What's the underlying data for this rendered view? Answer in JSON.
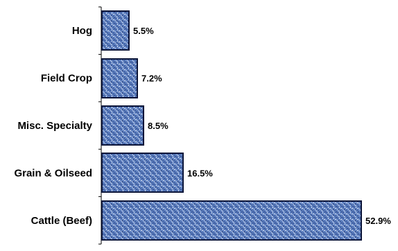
{
  "chart_data": {
    "type": "bar",
    "orientation": "horizontal",
    "categories": [
      "Hog",
      "Field Crop",
      "Misc. Specialty",
      "Grain & Oilseed",
      "Cattle (Beef)"
    ],
    "values": [
      5.5,
      7.2,
      8.5,
      16.5,
      52.9
    ],
    "value_labels": [
      "5.5%",
      "7.2%",
      "8.5%",
      "16.5%",
      "52.9%"
    ],
    "unit": "%",
    "title": "",
    "xlabel": "",
    "ylabel": "",
    "xlim": [
      0,
      52.9
    ],
    "grid": false,
    "legend": "none",
    "bar_color": "#5b7dbd",
    "bar_edge_color": "#0a1438",
    "bar_texture": "mottled denim"
  }
}
